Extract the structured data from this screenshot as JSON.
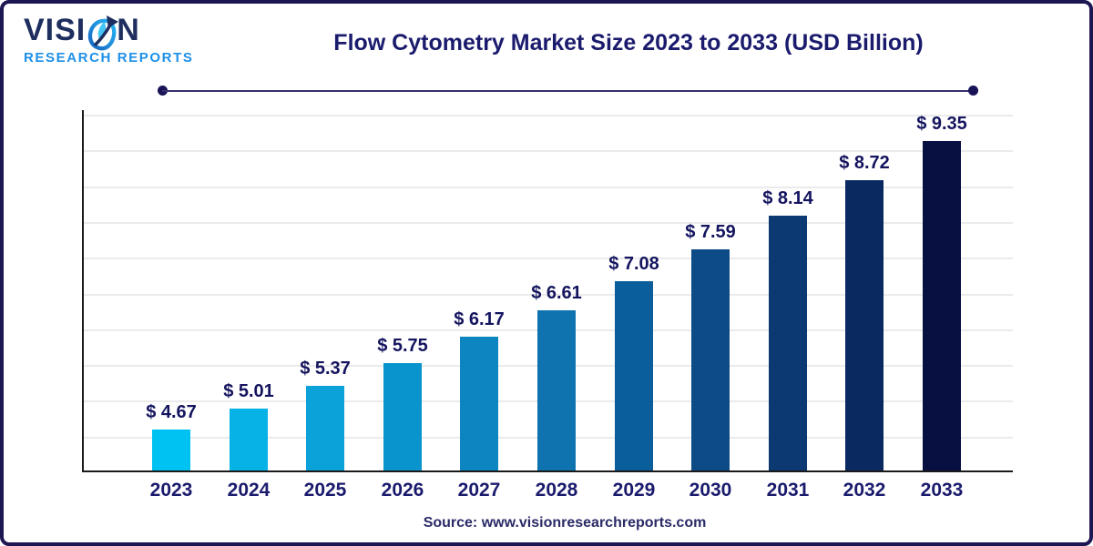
{
  "brand": {
    "name_pre": "VISI",
    "name_post": "N",
    "tagline": "RESEARCH REPORTS"
  },
  "header": {
    "title": "Flow Cytometry Market Size 2023 to 2033 (USD Billion)"
  },
  "footer": {
    "source": "Source: www.visionresearchreports.com"
  },
  "chart_data": {
    "type": "bar",
    "title": "Flow Cytometry Market Size 2023 to 2033 (USD Billion)",
    "unit": "USD Billion",
    "currency_prefix": "$ ",
    "categories": [
      "2023",
      "2024",
      "2025",
      "2026",
      "2027",
      "2028",
      "2029",
      "2030",
      "2031",
      "2032",
      "2033"
    ],
    "values": [
      4.67,
      5.01,
      5.37,
      5.75,
      6.17,
      6.61,
      7.08,
      7.59,
      8.14,
      8.72,
      9.35
    ],
    "bar_labels": [
      "$ 4.67",
      "$ 5.01",
      "$ 5.37",
      "$ 5.75",
      "$ 6.17",
      "$ 6.61",
      "$ 7.08",
      "$ 7.59",
      "$ 8.14",
      "$ 8.72",
      "$ 9.35"
    ],
    "bar_colors": [
      "#00c2f2",
      "#06b2e6",
      "#0aa2d8",
      "#0a94cd",
      "#0d85c0",
      "#0e73af",
      "#0b5e9c",
      "#0d4b87",
      "#0c3971",
      "#0a2960",
      "#071040"
    ],
    "ylim": [
      4.0,
      9.8
    ],
    "grid": true,
    "gridline_count": 10,
    "legend": "none",
    "xlabel": "",
    "ylabel": ""
  },
  "colors": {
    "frame_border": "#1c1653",
    "title_text": "#1b1b6e",
    "axis_line": "#1a1a1a",
    "gridline": "#ebebeb",
    "bar_value_text": "#14145f",
    "tick_text": "#1b1b6e",
    "source_text": "#2a2a68",
    "brand_name": "#1d2e5f",
    "brand_tagline": "#1e90e8",
    "separator_line": "#35316e"
  }
}
